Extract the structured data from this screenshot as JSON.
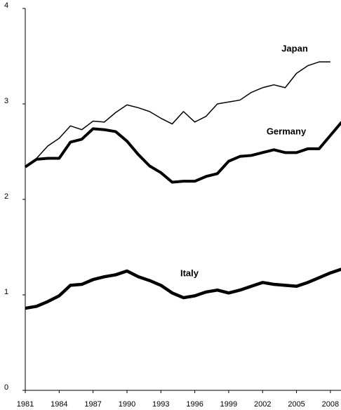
{
  "chart_data": {
    "type": "line",
    "x": [
      1981,
      1982,
      1983,
      1984,
      1985,
      1986,
      1987,
      1988,
      1989,
      1990,
      1991,
      1992,
      1993,
      1994,
      1995,
      1996,
      1997,
      1998,
      1999,
      2000,
      2001,
      2002,
      2003,
      2004,
      2005,
      2006,
      2007,
      2008,
      2009
    ],
    "series": [
      {
        "name": "Japan",
        "color": "#000000",
        "values": [
          2.34,
          2.43,
          2.56,
          2.64,
          2.77,
          2.73,
          2.82,
          2.81,
          2.91,
          2.99,
          2.96,
          2.92,
          2.85,
          2.79,
          2.92,
          2.81,
          2.87,
          3.0,
          3.02,
          3.04,
          3.12,
          3.17,
          3.2,
          3.17,
          3.32,
          3.4,
          3.44,
          3.44,
          null
        ]
      },
      {
        "name": "Germany",
        "color": "#000000",
        "values": [
          2.34,
          2.42,
          2.43,
          2.43,
          2.6,
          2.63,
          2.74,
          2.73,
          2.71,
          2.61,
          2.47,
          2.35,
          2.28,
          2.18,
          2.19,
          2.19,
          2.24,
          2.27,
          2.4,
          2.45,
          2.46,
          2.49,
          2.52,
          2.49,
          2.49,
          2.53,
          2.53,
          2.67,
          2.81
        ]
      },
      {
        "name": "Italy",
        "color": "#000000",
        "values": [
          0.86,
          0.88,
          0.93,
          0.99,
          1.1,
          1.11,
          1.16,
          1.19,
          1.21,
          1.25,
          1.19,
          1.15,
          1.1,
          1.02,
          0.97,
          0.99,
          1.03,
          1.05,
          1.02,
          1.05,
          1.09,
          1.13,
          1.11,
          1.1,
          1.09,
          1.13,
          1.18,
          1.23,
          1.27
        ]
      }
    ],
    "xlim": [
      1981,
      2009
    ],
    "xticks": [
      1981,
      1984,
      1987,
      1990,
      1993,
      1996,
      1999,
      2002,
      2005,
      2008
    ],
    "ylim": [
      0,
      4
    ],
    "yticks": [
      0,
      1,
      2,
      3,
      4
    ]
  }
}
